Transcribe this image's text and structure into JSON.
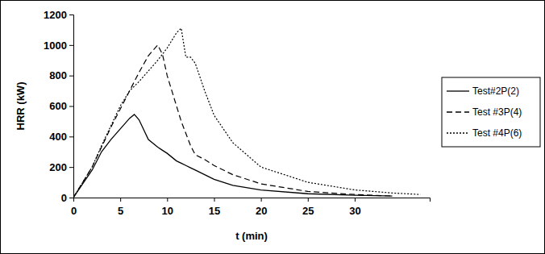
{
  "chart_data": {
    "type": "line",
    "x_label": "t (min)",
    "y_label": "HRR (kW)",
    "x": [
      0,
      1,
      2,
      3,
      4,
      5,
      6,
      6.5,
      7,
      8,
      9,
      9.5,
      10,
      11,
      11.5,
      12,
      12.5,
      13,
      14,
      15,
      17,
      20,
      25,
      30,
      34,
      37
    ],
    "series": [
      {
        "name": "Test#2P(2)",
        "color": "#000000",
        "line_style": "solid",
        "values": [
          0,
          90,
          180,
          300,
          380,
          450,
          520,
          545,
          510,
          380,
          330,
          310,
          290,
          240,
          225,
          210,
          195,
          180,
          150,
          120,
          80,
          50,
          25,
          15,
          10,
          null
        ]
      },
      {
        "name": "Test #3P(4)",
        "color": "#000000",
        "line_style": "dashed",
        "values": [
          0,
          100,
          200,
          330,
          460,
          580,
          700,
          760,
          820,
          930,
          1000,
          940,
          800,
          600,
          500,
          420,
          340,
          280,
          250,
          210,
          150,
          90,
          40,
          20,
          10,
          null
        ]
      },
      {
        "name": "Test #4P(6)",
        "color": "#000000",
        "line_style": "dotted",
        "values": [
          0,
          100,
          200,
          340,
          470,
          600,
          700,
          730,
          760,
          830,
          900,
          940,
          980,
          1080,
          1110,
          920,
          920,
          880,
          700,
          540,
          360,
          200,
          100,
          50,
          30,
          20
        ]
      }
    ],
    "xlim": [
      0,
      38
    ],
    "xticks": [
      0,
      5,
      10,
      15,
      20,
      25,
      30
    ],
    "ylim": [
      0,
      1200
    ],
    "yticks": [
      0,
      200,
      400,
      600,
      800,
      1000,
      1200
    ],
    "grid": false,
    "legend": "right"
  }
}
